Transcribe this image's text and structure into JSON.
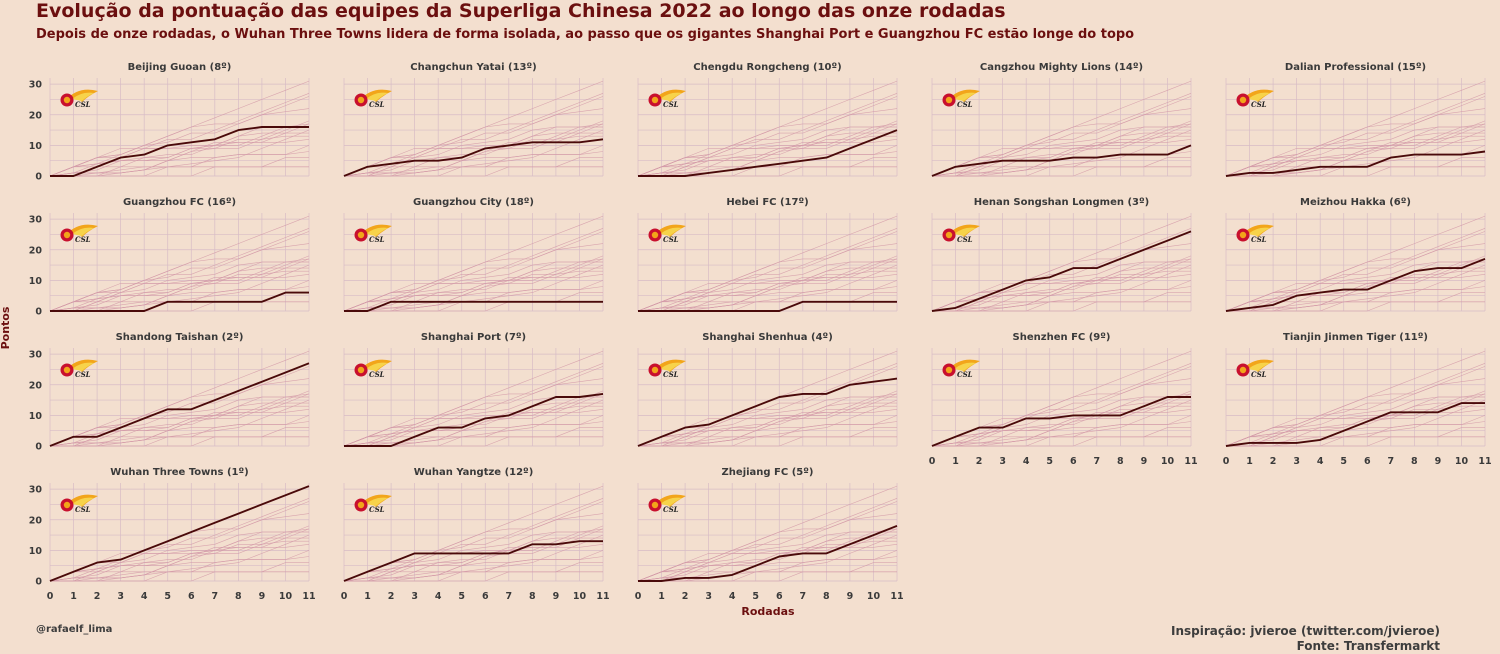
{
  "header": {
    "title": "Evolução da pontuação das equipes da Superliga Chinesa 2022 ao longo das onze rodadas",
    "subtitle": "Depois de onze rodadas, o Wuhan Three Towns lidera de forma isolada, ao passo que os gigantes Shanghai Port e Guangzhou FC estão longe do topo"
  },
  "footer": {
    "author": "@rafaelf_lima",
    "inspiration": "Inspiração: jvieroe (twitter.com/jvieroe)",
    "source": "Fonte: Transfermarkt"
  },
  "logo_text": "CSL",
  "colors": {
    "background": "#f3dfcf",
    "highlight_line": "#4a0a0a",
    "other_lines": "#d49aa8",
    "grid": "#d7bcc6",
    "title": "#6b0f0f"
  },
  "chart_data": {
    "type": "line",
    "facets": true,
    "xlabel": "Rodadas",
    "ylabel": "Pontos",
    "x": [
      0,
      1,
      2,
      3,
      4,
      5,
      6,
      7,
      8,
      9,
      10,
      11
    ],
    "xticks": [
      "0",
      "1",
      "2",
      "3",
      "4",
      "5",
      "6",
      "7",
      "8",
      "9",
      "10",
      "11"
    ],
    "yticks": [
      "0",
      "10",
      "20",
      "30"
    ],
    "ylim": [
      0,
      32
    ],
    "grid": true,
    "series": [
      {
        "name": "Beijing Guoan (8º)",
        "values": [
          0,
          0,
          3,
          6,
          7,
          10,
          11,
          12,
          15,
          16,
          16,
          16
        ]
      },
      {
        "name": "Changchun Yatai (13º)",
        "values": [
          0,
          3,
          4,
          5,
          5,
          6,
          9,
          10,
          11,
          11,
          11,
          12
        ]
      },
      {
        "name": "Chengdu Rongcheng (10º)",
        "values": [
          0,
          0,
          0,
          1,
          2,
          3,
          4,
          5,
          6,
          9,
          12,
          15
        ]
      },
      {
        "name": "Cangzhou Mighty Lions (14º)",
        "values": [
          0,
          3,
          4,
          5,
          5,
          5,
          6,
          6,
          7,
          7,
          7,
          10
        ]
      },
      {
        "name": "Dalian Professional (15º)",
        "values": [
          0,
          1,
          1,
          2,
          3,
          3,
          3,
          6,
          7,
          7,
          7,
          8
        ]
      },
      {
        "name": "Guangzhou FC (16º)",
        "values": [
          0,
          0,
          0,
          0,
          0,
          3,
          3,
          3,
          3,
          3,
          6,
          6
        ]
      },
      {
        "name": "Guangzhou City (18º)",
        "values": [
          0,
          0,
          3,
          3,
          3,
          3,
          3,
          3,
          3,
          3,
          3,
          3
        ]
      },
      {
        "name": "Hebei FC (17º)",
        "values": [
          0,
          0,
          0,
          0,
          0,
          0,
          0,
          3,
          3,
          3,
          3,
          3
        ]
      },
      {
        "name": "Henan Songshan Longmen (3º)",
        "values": [
          0,
          1,
          4,
          7,
          10,
          11,
          14,
          14,
          17,
          20,
          23,
          26
        ]
      },
      {
        "name": "Meizhou Hakka (6º)",
        "values": [
          0,
          1,
          2,
          5,
          6,
          7,
          7,
          10,
          13,
          14,
          14,
          17
        ]
      },
      {
        "name": "Shandong Taishan (2º)",
        "values": [
          0,
          3,
          3,
          6,
          9,
          12,
          12,
          15,
          18,
          21,
          24,
          27
        ]
      },
      {
        "name": "Shanghai Port (7º)",
        "values": [
          0,
          0,
          0,
          3,
          6,
          6,
          9,
          10,
          13,
          16,
          16,
          17
        ]
      },
      {
        "name": "Shanghai Shenhua (4º)",
        "values": [
          0,
          3,
          6,
          7,
          10,
          13,
          16,
          17,
          17,
          20,
          21,
          22
        ]
      },
      {
        "name": "Shenzhen FC (9º)",
        "values": [
          0,
          3,
          6,
          6,
          9,
          9,
          10,
          10,
          10,
          13,
          16,
          16
        ]
      },
      {
        "name": "Tianjin Jinmen Tiger (11º)",
        "values": [
          0,
          1,
          1,
          1,
          2,
          5,
          8,
          11,
          11,
          11,
          14,
          14
        ]
      },
      {
        "name": "Wuhan Three Towns (1º)",
        "values": [
          0,
          3,
          6,
          7,
          10,
          13,
          16,
          19,
          22,
          25,
          28,
          31
        ]
      },
      {
        "name": "Wuhan Yangtze (12º)",
        "values": [
          0,
          3,
          6,
          9,
          9,
          9,
          9,
          9,
          12,
          12,
          13,
          13
        ]
      },
      {
        "name": "Zhejiang FC (5º)",
        "values": [
          0,
          0,
          1,
          1,
          2,
          5,
          8,
          9,
          9,
          12,
          15,
          18
        ]
      }
    ]
  }
}
